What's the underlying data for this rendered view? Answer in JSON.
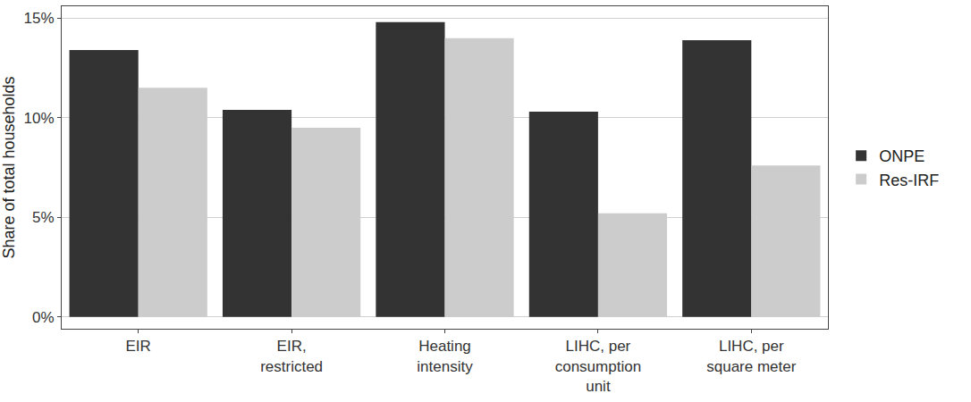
{
  "chart_data": {
    "type": "bar",
    "y_label": "Share of total households",
    "categories": [
      "EIR",
      "EIR, restricted",
      "Heating intensity",
      "LIHC, per consumption unit",
      "LIHC, per square meter"
    ],
    "series": [
      {
        "name": "ONPE",
        "color": "#333333",
        "values": [
          13.4,
          10.4,
          14.8,
          10.3,
          13.9
        ]
      },
      {
        "name": "Res-IRF",
        "color": "#cccccc",
        "values": [
          11.5,
          9.5,
          14.0,
          5.2,
          7.6
        ]
      }
    ],
    "ylim": [
      -0.6,
      15.6
    ],
    "yticks": [
      {
        "value": 0,
        "label": "0%"
      },
      {
        "value": 5,
        "label": "5%"
      },
      {
        "value": 10,
        "label": "10%"
      },
      {
        "value": 15,
        "label": "15%"
      }
    ],
    "grid": true,
    "legend": "right"
  }
}
